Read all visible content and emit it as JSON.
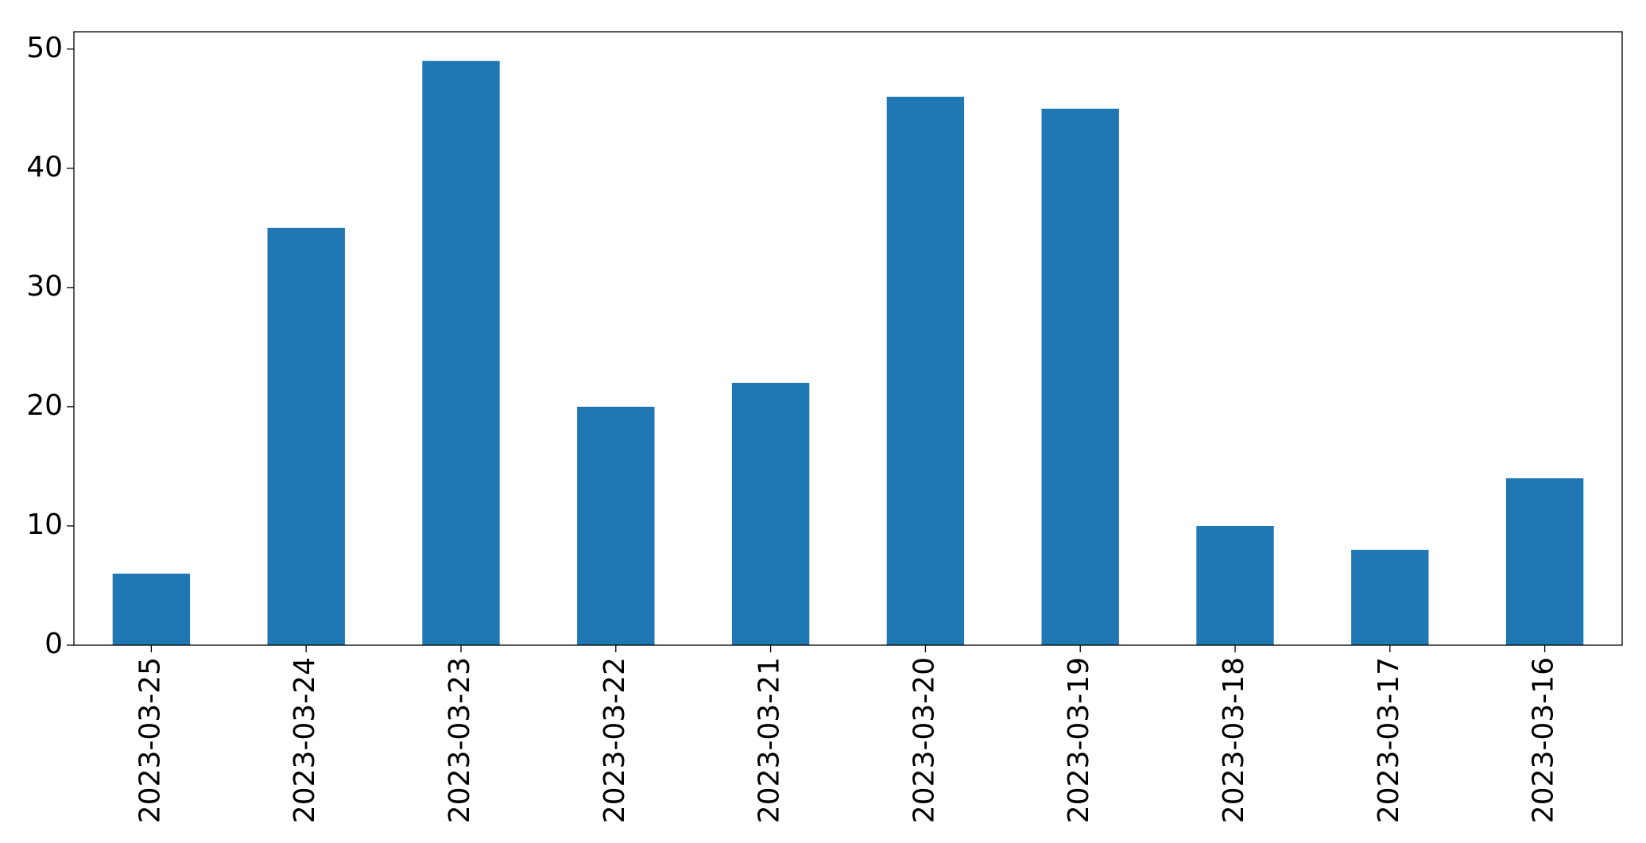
{
  "chart_data": {
    "type": "bar",
    "categories": [
      "2023-03-25",
      "2023-03-24",
      "2023-03-23",
      "2023-03-22",
      "2023-03-21",
      "2023-03-20",
      "2023-03-19",
      "2023-03-18",
      "2023-03-17",
      "2023-03-16"
    ],
    "values": [
      6,
      35,
      49,
      20,
      22,
      46,
      45,
      10,
      8,
      14
    ],
    "color": "#1f77b4",
    "ylim": [
      0,
      51.45
    ],
    "yticks": [
      0,
      10,
      20,
      30,
      40,
      50
    ],
    "grid": false
  }
}
